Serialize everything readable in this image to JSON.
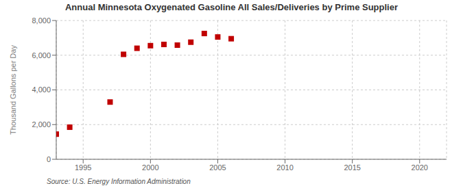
{
  "chart_data": {
    "type": "scatter",
    "title": "Annual Minnesota Oxygenated Gasoline All Sales/Deliveries by Prime Supplier",
    "ylabel": "Thousand Gallons per Day",
    "annotations": [
      "Source: U.S. Energy Information Administration"
    ],
    "x": [
      1993,
      1994,
      1997,
      1998,
      1999,
      2000,
      2001,
      2002,
      2003,
      2004,
      2005,
      2006
    ],
    "values": [
      1450,
      1850,
      3300,
      6050,
      6400,
      6550,
      6620,
      6580,
      6750,
      7250,
      7050,
      6950
    ],
    "color": "#c00000",
    "marker": "square",
    "xlim": [
      1993,
      2022
    ],
    "ylim": [
      0,
      8000
    ],
    "xticks": [
      1995,
      2000,
      2005,
      2010,
      2015,
      2020
    ],
    "yticks": [
      0,
      {
        "value": 2000,
        "label": "2,000"
      },
      {
        "value": 4000,
        "label": "4,000"
      },
      {
        "value": 6000,
        "label": "6,000"
      },
      {
        "value": 8000,
        "label": "8,000"
      }
    ],
    "grid": true
  }
}
